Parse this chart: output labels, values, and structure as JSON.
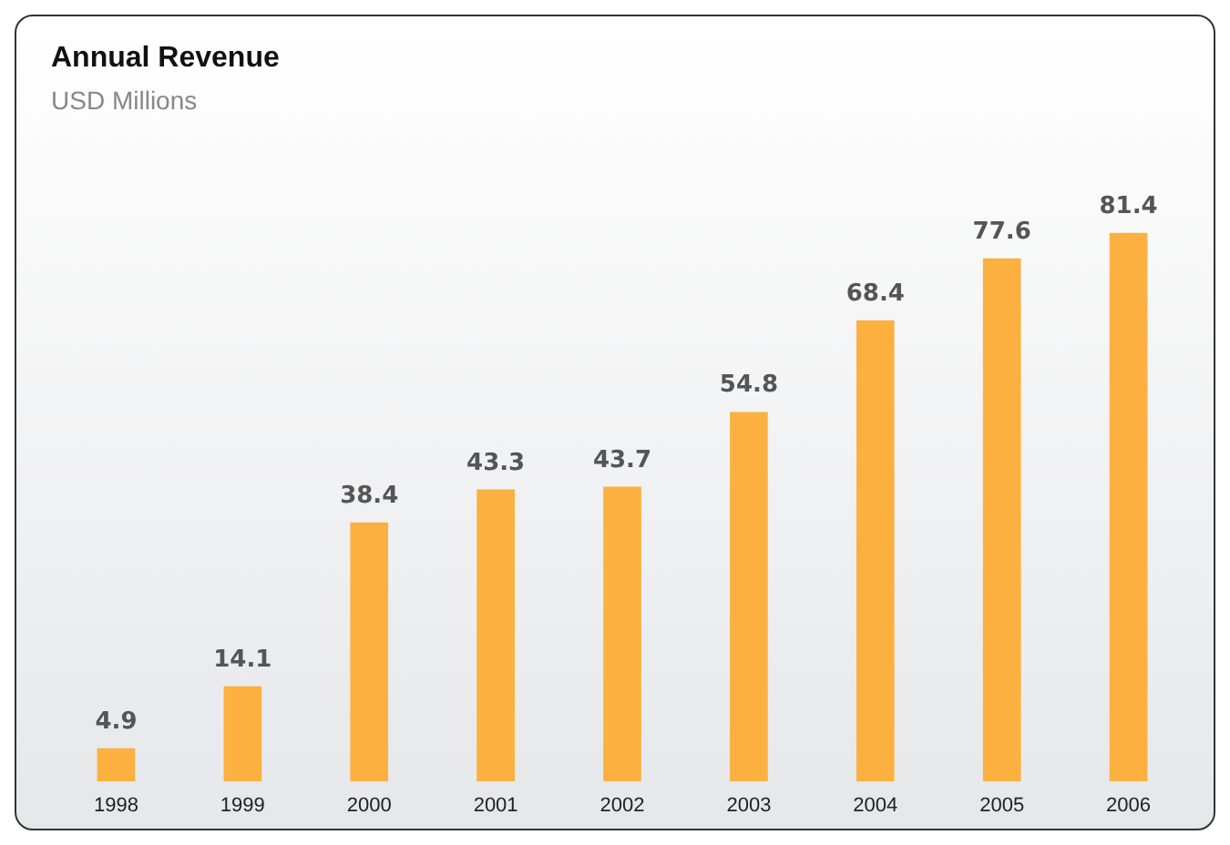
{
  "chart_data": {
    "type": "bar",
    "title": "Annual Revenue",
    "subtitle": "USD Millions",
    "categories": [
      "1998",
      "1999",
      "2000",
      "2001",
      "2002",
      "2003",
      "2004",
      "2005",
      "2006"
    ],
    "values": [
      4.9,
      14.1,
      38.4,
      43.3,
      43.7,
      54.8,
      68.4,
      77.6,
      81.4
    ],
    "color": "#fbb040",
    "data_labels": true
  }
}
